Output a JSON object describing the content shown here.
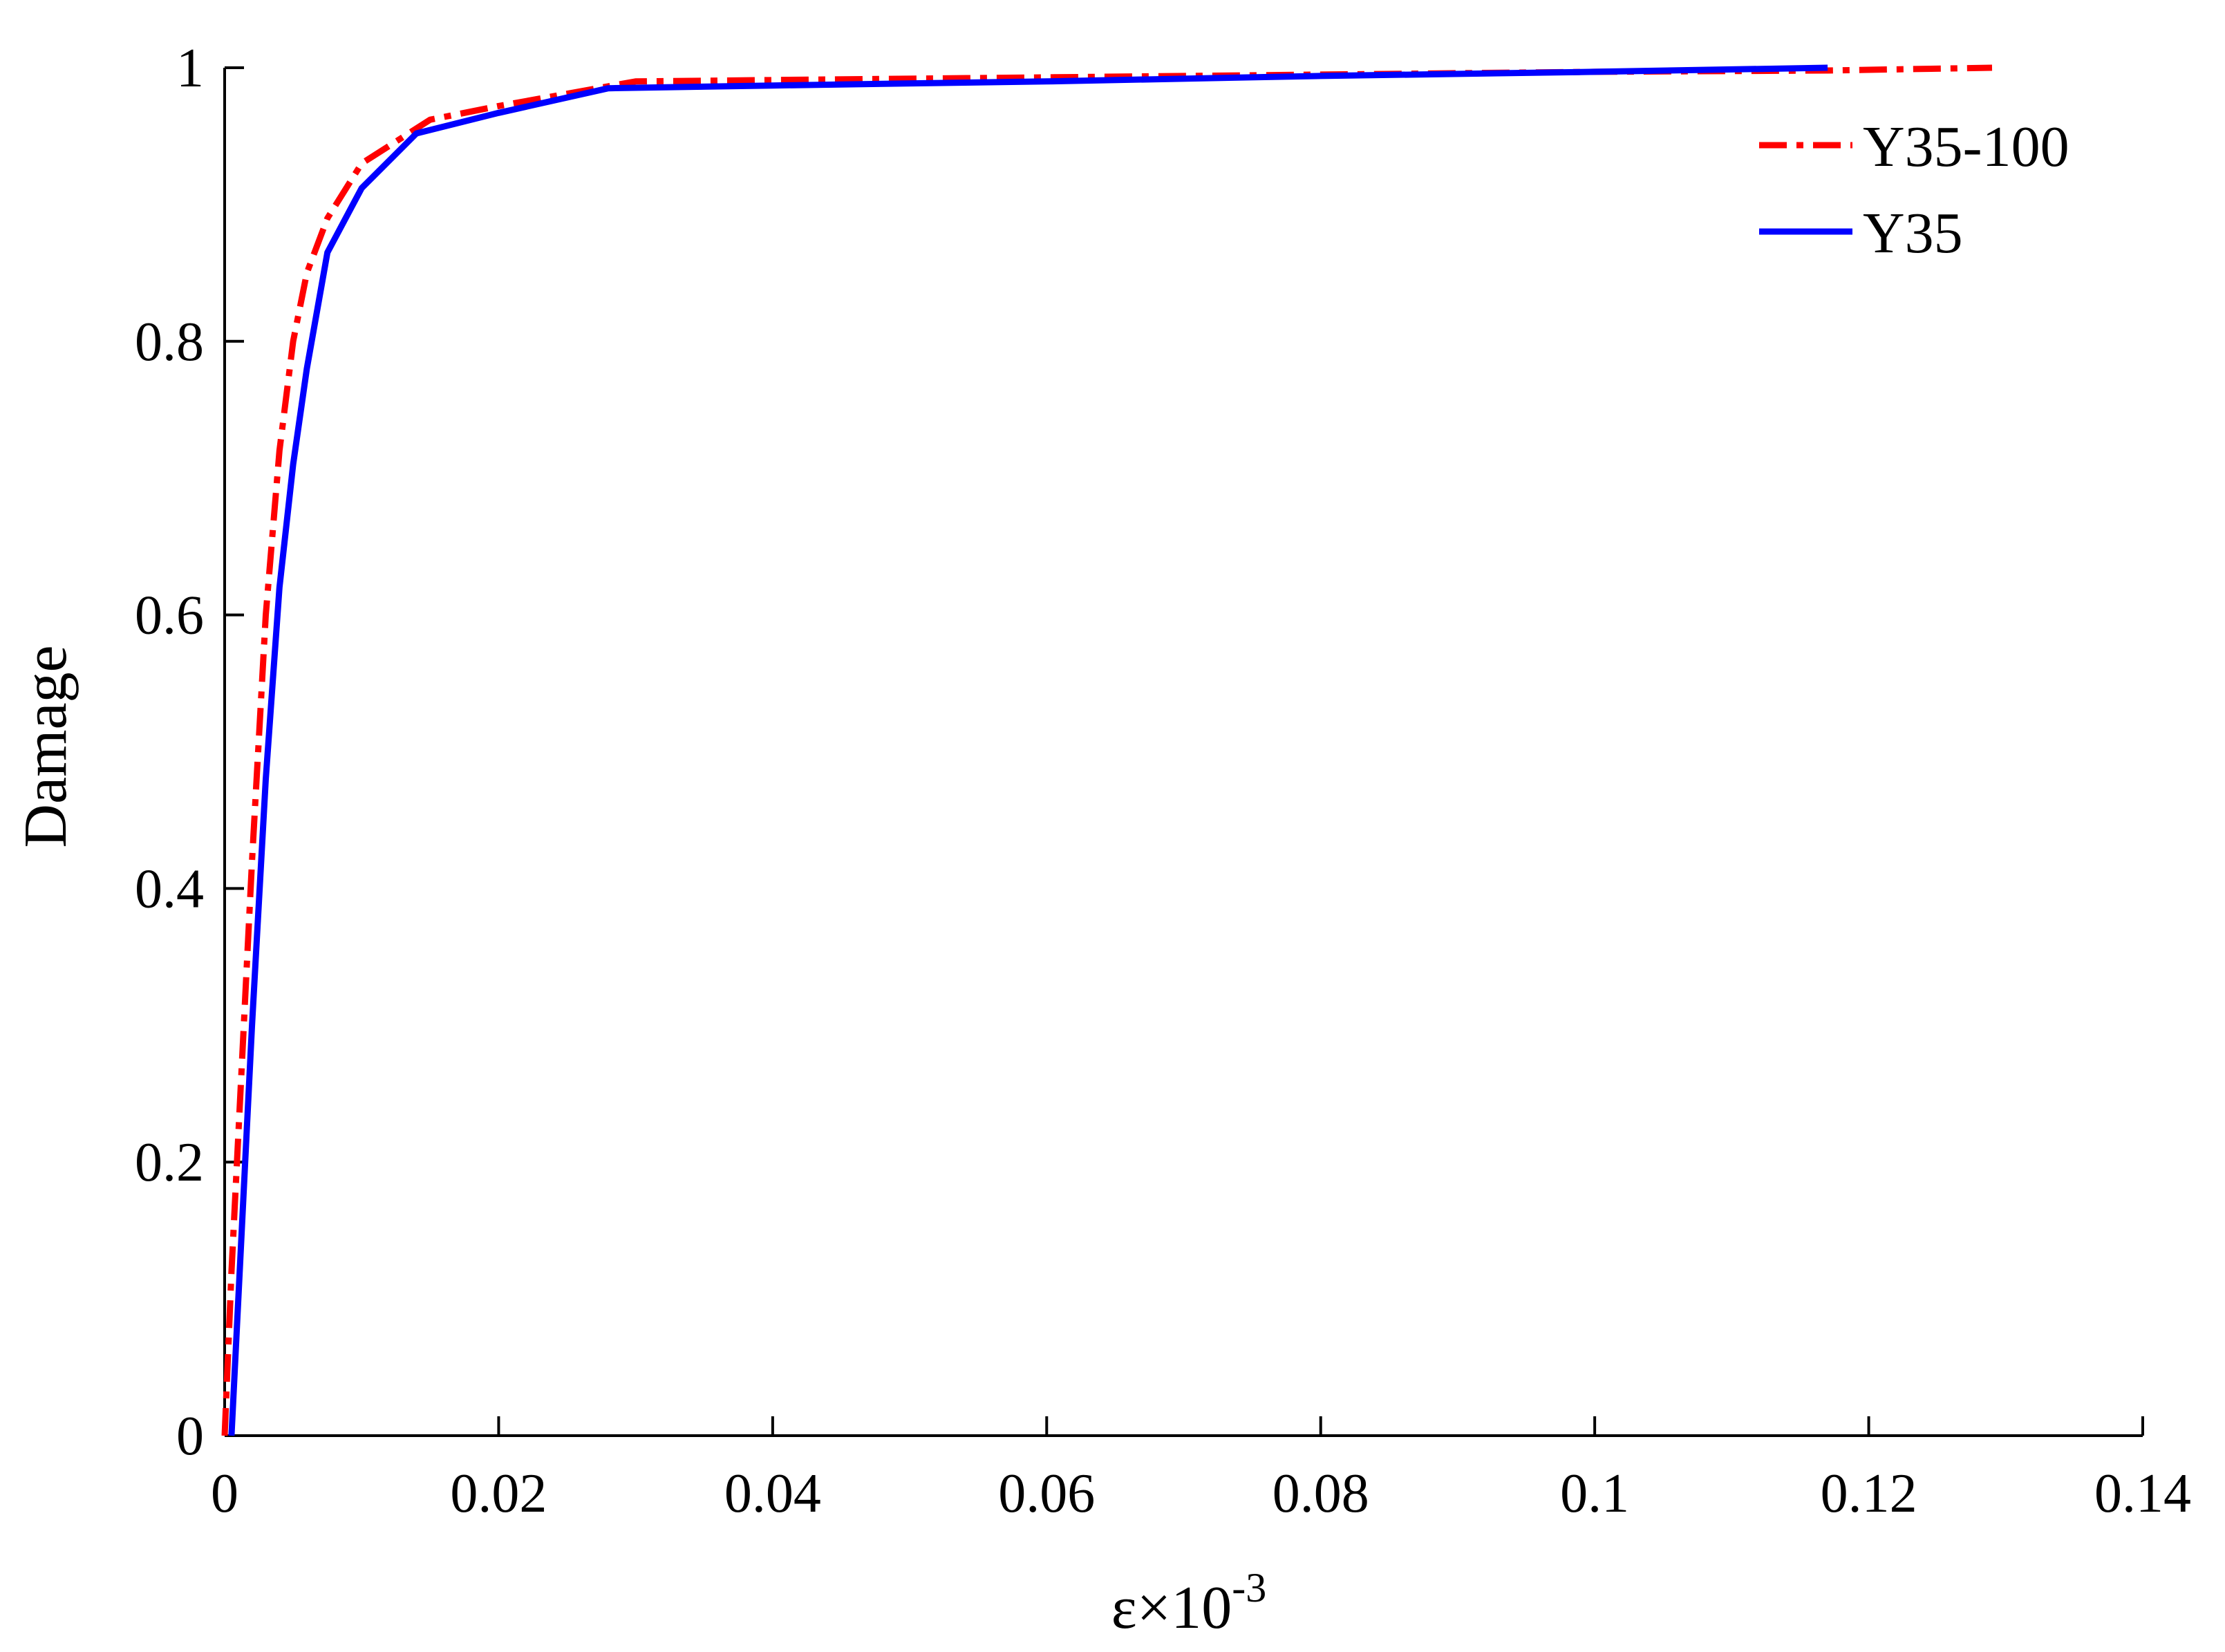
{
  "chart_data": {
    "type": "line",
    "title": "",
    "xlabel_base": "ε×10",
    "xlabel_exp": "-3",
    "ylabel": "Damage",
    "xlim": [
      0,
      0.14
    ],
    "ylim": [
      0,
      1
    ],
    "x_ticks": [
      0,
      0.02,
      0.04,
      0.06,
      0.08,
      0.1,
      0.12,
      0.14
    ],
    "x_tick_labels": [
      "0",
      "0.02",
      "0.04",
      "0.06",
      "0.08",
      "0.1",
      "0.12",
      "0.14"
    ],
    "y_ticks": [
      0,
      0.2,
      0.4,
      0.6,
      0.8,
      1
    ],
    "y_tick_labels": [
      "0",
      "0.2",
      "0.4",
      "0.6",
      "0.8",
      "1"
    ],
    "grid": false,
    "legend_position": "top-right",
    "series": [
      {
        "name": "Y35-100",
        "color": "#ff0000",
        "style": "dash-dot",
        "x": [
          0.0,
          0.0005,
          0.001,
          0.0015,
          0.002,
          0.003,
          0.004,
          0.005,
          0.006,
          0.0075,
          0.01,
          0.015,
          0.02,
          0.03,
          0.04,
          0.06,
          0.08,
          0.1,
          0.117,
          0.129
        ],
        "y": [
          0.0,
          0.12,
          0.22,
          0.32,
          0.42,
          0.6,
          0.72,
          0.8,
          0.85,
          0.89,
          0.93,
          0.962,
          0.972,
          0.99,
          0.991,
          0.993,
          0.995,
          0.997,
          0.998,
          1.0
        ]
      },
      {
        "name": "Y35",
        "color": "#0000ff",
        "style": "solid",
        "x": [
          0.0005,
          0.001,
          0.0015,
          0.002,
          0.003,
          0.004,
          0.005,
          0.006,
          0.0075,
          0.01,
          0.014,
          0.02,
          0.028,
          0.04,
          0.06,
          0.08,
          0.1,
          0.117
        ],
        "y": [
          0.0,
          0.1,
          0.2,
          0.3,
          0.48,
          0.62,
          0.71,
          0.78,
          0.865,
          0.912,
          0.952,
          0.967,
          0.985,
          0.987,
          0.99,
          0.994,
          0.997,
          1.0
        ]
      }
    ]
  }
}
